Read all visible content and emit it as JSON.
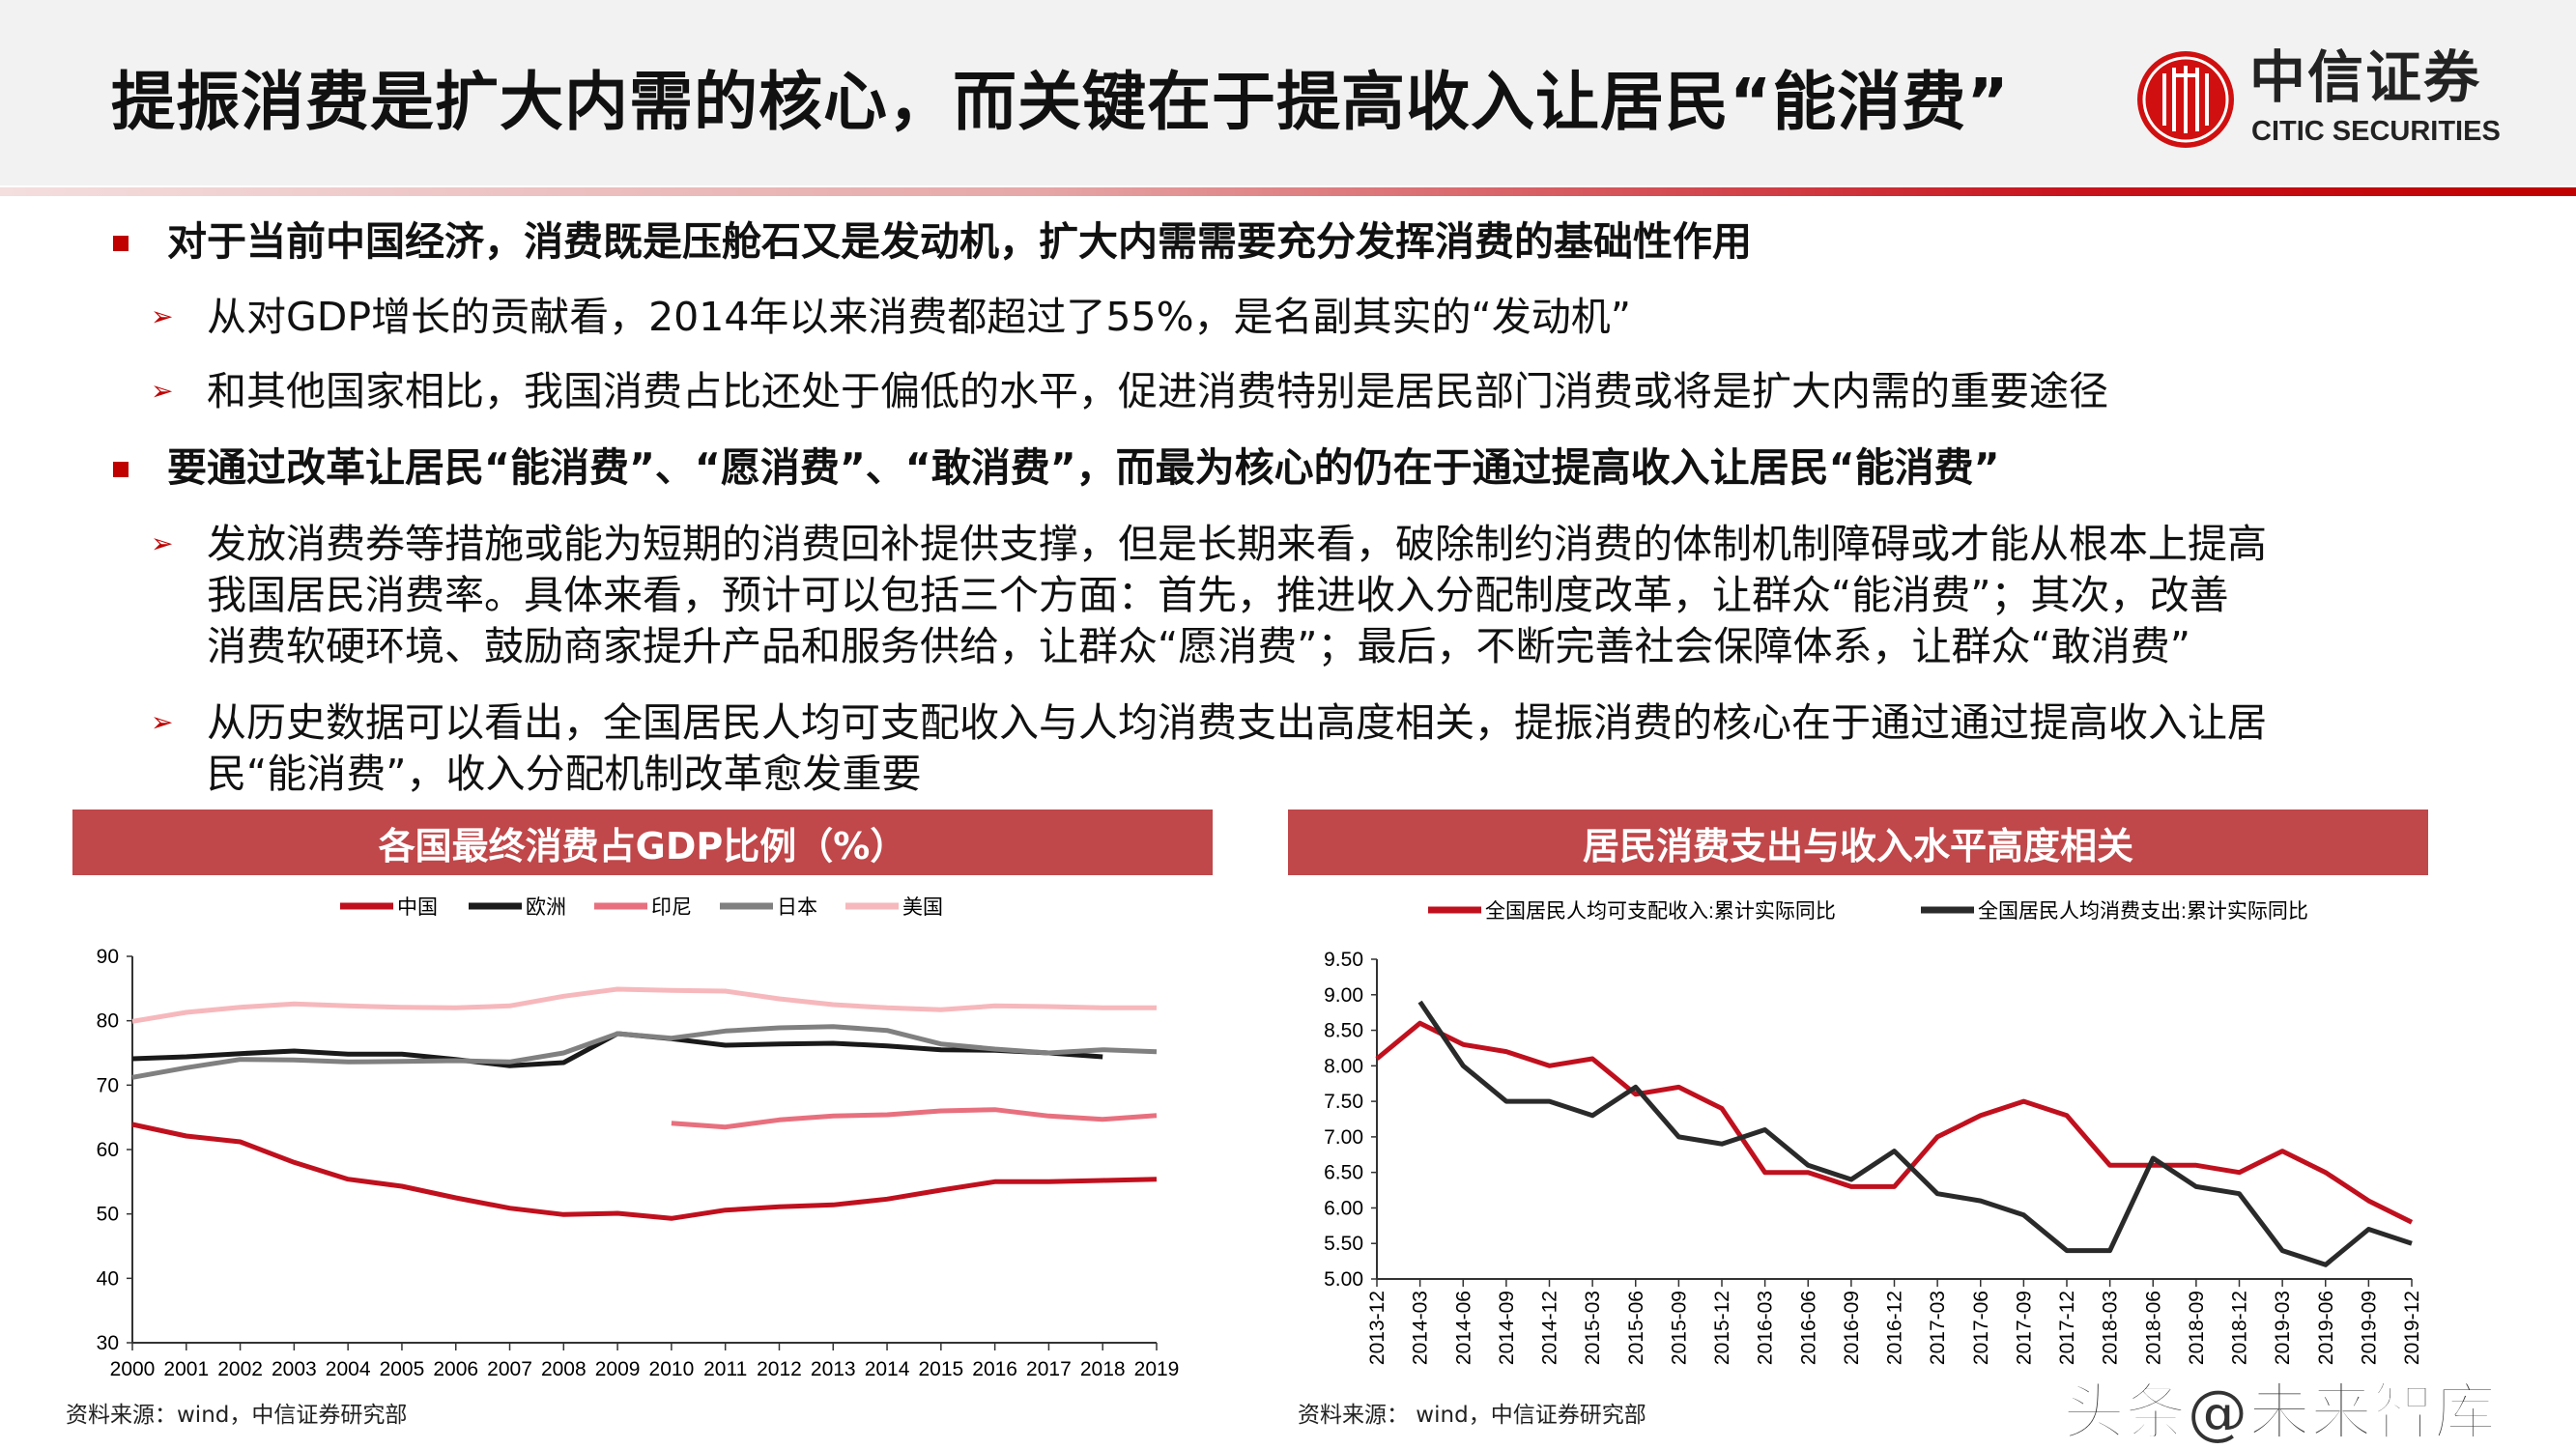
{
  "header": {
    "title": "提振消费是扩大内需的核心，而关键在于提高收入让居民“能消费”",
    "logo_cn": "中信证券",
    "logo_en": "CITIC SECURITIES"
  },
  "bullets": [
    {
      "level": 1,
      "text": "对于当前中国经济，消费既是压舱石又是发动机，扩大内需需要充分发挥消费的基础性作用"
    },
    {
      "level": 2,
      "text": "从对GDP增长的贡献看，2014年以来消费都超过了55%，是名副其实的“发动机”"
    },
    {
      "level": 2,
      "text": "和其他国家相比，我国消费占比还处于偏低的水平，促进消费特别是居民部门消费或将是扩大内需的重要途径"
    },
    {
      "level": 1,
      "text": "要通过改革让居民“能消费”、“愿消费”、“敢消费”，而最为核心的仍在于通过提高收入让居民“能消费”"
    },
    {
      "level": 2,
      "lines": [
        "发放消费券等措施或能为短期的消费回补提供支撑，但是长期来看，破除制约消费的体制机制障碍或才能从根本上提高",
        "我国居民消费率。具体来看，预计可以包括三个方面：首先，推进收入分配制度改革，让群众“能消费”；其次，改善",
        "消费软硬环境、鼓励商家提升产品和服务供给，让群众“愿消费”；最后，不断完善社会保障体系，让群众“敢消费”"
      ]
    },
    {
      "level": 2,
      "lines": [
        "从历史数据可以看出，全国居民人均可支配收入与人均消费支出高度相关，提振消费的核心在于通过通过提高收入让居",
        "民“能消费”，收入分配机制改革愈发重要"
      ]
    }
  ],
  "watermark": "头条@未来智库",
  "chart_data": [
    {
      "type": "line",
      "title": "各国最终消费占GDP比例（%）",
      "source": "资料来源：wind，中信证券研究部",
      "ylim": [
        30,
        90
      ],
      "yticks": [
        30,
        40,
        50,
        60,
        70,
        80,
        90
      ],
      "legend": "top",
      "x": [
        "2000",
        "2001",
        "2002",
        "2003",
        "2004",
        "2005",
        "2006",
        "2007",
        "2008",
        "2009",
        "2010",
        "2011",
        "2012",
        "2013",
        "2014",
        "2015",
        "2016",
        "2017",
        "2018",
        "2019"
      ],
      "series": [
        {
          "name": "中国",
          "color": "#c0101e",
          "values": [
            63.9,
            62.1,
            61.2,
            58.0,
            55.4,
            54.3,
            52.5,
            50.9,
            49.9,
            50.1,
            49.3,
            50.6,
            51.1,
            51.4,
            52.3,
            53.7,
            55.0,
            55.0,
            55.2,
            55.4
          ]
        },
        {
          "name": "欧洲",
          "color": "#1a1a1a",
          "values": [
            74.1,
            74.4,
            74.9,
            75.3,
            74.8,
            74.8,
            74.0,
            73.0,
            73.5,
            78.0,
            77.2,
            76.2,
            76.4,
            76.5,
            76.1,
            75.5,
            75.4,
            75.0,
            74.4,
            null
          ]
        },
        {
          "name": "印尼",
          "color": "#e8707e",
          "values": [
            null,
            null,
            null,
            null,
            null,
            null,
            null,
            null,
            null,
            null,
            64.1,
            63.5,
            64.6,
            65.2,
            65.4,
            66.0,
            66.2,
            65.2,
            64.7,
            65.3
          ]
        },
        {
          "name": "日本",
          "color": "#808080",
          "values": [
            71.2,
            72.7,
            74.0,
            73.9,
            73.6,
            73.7,
            73.8,
            73.6,
            75.0,
            78.0,
            77.3,
            78.4,
            78.9,
            79.1,
            78.5,
            76.4,
            75.6,
            75.0,
            75.5,
            75.2
          ]
        },
        {
          "name": "美国",
          "color": "#f6b8bc",
          "values": [
            79.9,
            81.3,
            82.1,
            82.6,
            82.3,
            82.1,
            82.0,
            82.3,
            83.8,
            84.9,
            84.7,
            84.6,
            83.4,
            82.5,
            82.0,
            81.7,
            82.3,
            82.2,
            82.0,
            82.0
          ]
        }
      ]
    },
    {
      "type": "line",
      "title": "居民消费支出与收入水平高度相关",
      "source": "资料来源： wind，中信证券研究部",
      "ylim": [
        5,
        9.5
      ],
      "yticks": [
        "5.00",
        "5.50",
        "6.00",
        "6.50",
        "7.00",
        "7.50",
        "8.00",
        "8.50",
        "9.00",
        "9.50"
      ],
      "legend": "top",
      "x": [
        "2013-12",
        "2014-03",
        "2014-06",
        "2014-09",
        "2014-12",
        "2015-03",
        "2015-06",
        "2015-09",
        "2015-12",
        "2016-03",
        "2016-06",
        "2016-09",
        "2016-12",
        "2017-03",
        "2017-06",
        "2017-09",
        "2017-12",
        "2018-03",
        "2018-06",
        "2018-09",
        "2018-12",
        "2019-03",
        "2019-06",
        "2019-09",
        "2019-12"
      ],
      "series": [
        {
          "name": "全国居民人均可支配收入:累计实际同比",
          "color": "#c0101e",
          "values": [
            8.1,
            8.6,
            8.3,
            8.2,
            8.0,
            8.1,
            7.6,
            7.7,
            7.4,
            6.5,
            6.5,
            6.3,
            6.3,
            7.0,
            7.3,
            7.5,
            7.3,
            6.6,
            6.6,
            6.6,
            6.5,
            6.8,
            6.5,
            6.1,
            5.8
          ]
        },
        {
          "name": "全国居民人均消费支出:累计实际同比",
          "color": "#2a2a2a",
          "values": [
            null,
            8.9,
            8.0,
            7.5,
            7.5,
            7.3,
            7.7,
            7.0,
            6.9,
            7.1,
            6.6,
            6.4,
            6.8,
            6.2,
            6.1,
            5.9,
            5.4,
            5.4,
            6.7,
            6.3,
            6.2,
            5.4,
            5.2,
            5.7,
            5.5
          ]
        }
      ]
    }
  ]
}
